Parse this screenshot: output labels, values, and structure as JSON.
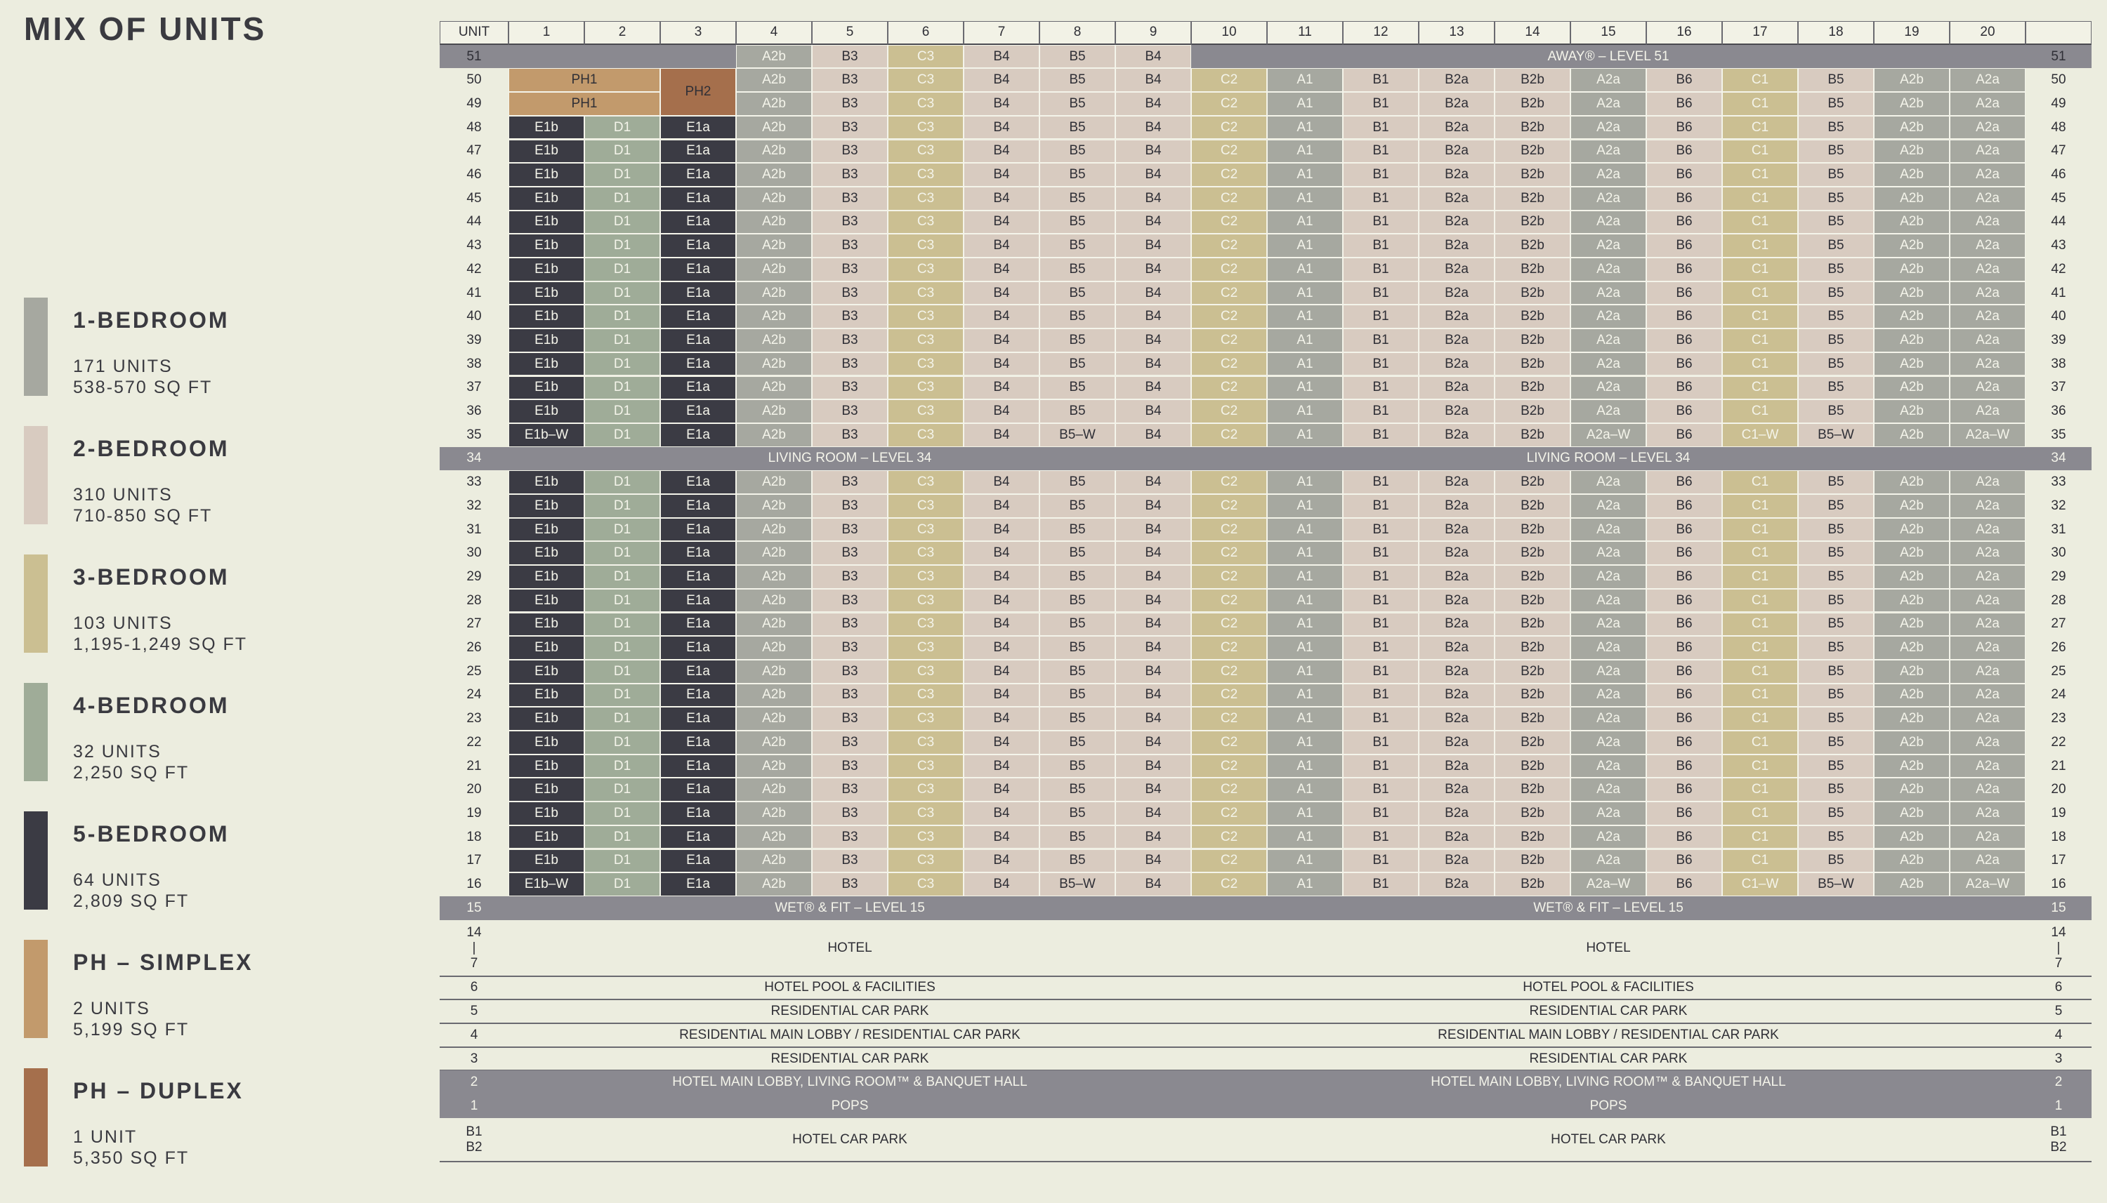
{
  "title": "MIX OF UNITS",
  "legend": [
    {
      "label": "1-BEDROOM",
      "units": "171 UNITS",
      "sqft": "538-570 SQ FT",
      "color": "#a6a8a0"
    },
    {
      "label": "2-BEDROOM",
      "units": "310 UNITS",
      "sqft": "710-850 SQ FT",
      "color": "#d8cbc0"
    },
    {
      "label": "3-BEDROOM",
      "units": "103 UNITS",
      "sqft": "1,195-1,249 SQ FT",
      "color": "#cbbf92"
    },
    {
      "label": "4-BEDROOM",
      "units": "32 UNITS",
      "sqft": "2,250 SQ FT",
      "color": "#9fac98"
    },
    {
      "label": "5-BEDROOM",
      "units": "64 UNITS",
      "sqft": "2,809 SQ FT",
      "color": "#3b3b44"
    },
    {
      "label": "PH – SIMPLEX",
      "units": "2 UNITS",
      "sqft": "5,199 SQ FT",
      "color": "#c29a6c"
    },
    {
      "label": "PH – DUPLEX",
      "units": "1 UNIT",
      "sqft": "5,350 SQ FT",
      "color": "#a56f4c"
    }
  ],
  "colors": {
    "1-bedroom": "#a6a8a0",
    "2-bedroom": "#d8cbc0",
    "3-bedroom": "#cbbf92",
    "4-bedroom": "#9fac98",
    "5-bedroom": "#3b3b44",
    "ph-simplex": "#c29a6c",
    "ph-duplex": "#a56f4c",
    "band": "#8a8990",
    "background": "#eceddf"
  },
  "stack": {
    "header_label": "UNIT",
    "columns": [
      "1",
      "2",
      "3",
      "4",
      "5",
      "6",
      "7",
      "8",
      "9",
      "10",
      "11",
      "12",
      "13",
      "14",
      "15",
      "16",
      "17",
      "18",
      "19",
      "20"
    ],
    "typical_units": [
      "E1b",
      "D1",
      "E1a",
      "A2b",
      "B3",
      "C3",
      "B4",
      "B5",
      "B4",
      "C2",
      "A1",
      "B1",
      "B2a",
      "B2b",
      "A2a",
      "B6",
      "C1",
      "B5",
      "A2b",
      "A2a"
    ],
    "unit_bedrooms": {
      "E1b": "5-bedroom",
      "E1b–W": "5-bedroom",
      "E1a": "5-bedroom",
      "D1": "4-bedroom",
      "C1": "3-bedroom",
      "C1–W": "3-bedroom",
      "C2": "3-bedroom",
      "C3": "3-bedroom",
      "B1": "2-bedroom",
      "B2a": "2-bedroom",
      "B2b": "2-bedroom",
      "B3": "2-bedroom",
      "B4": "2-bedroom",
      "B5": "2-bedroom",
      "B5–W": "2-bedroom",
      "B6": "2-bedroom",
      "A1": "1-bedroom",
      "A2a": "1-bedroom",
      "A2a–W": "1-bedroom",
      "A2b": "1-bedroom",
      "PH1": "ph-simplex",
      "PH2": "ph-duplex"
    },
    "level_51": {
      "level": "51",
      "units": [
        "A2b",
        "B3",
        "C3",
        "B4",
        "B5",
        "B4"
      ],
      "band": "AWAY® – LEVEL 51"
    },
    "penthouses": {
      "simplex": "PH1",
      "duplex": "PH2",
      "levels": [
        "50",
        "49"
      ]
    },
    "wellness_variant": {
      "level_a": "35",
      "level_b": "16",
      "E1b": "E1b–W",
      "A2a": "A2a–W",
      "C1": "C1–W",
      "B5": "B5–W"
    },
    "upper_levels": [
      "50",
      "49",
      "48",
      "47",
      "46",
      "45",
      "44",
      "43",
      "42",
      "41",
      "40",
      "39",
      "38",
      "37",
      "36",
      "35"
    ],
    "band_34": {
      "level": "34",
      "left": "LIVING ROOM – LEVEL 34",
      "right": "LIVING ROOM – LEVEL 34"
    },
    "lower_levels": [
      "33",
      "32",
      "31",
      "30",
      "29",
      "28",
      "27",
      "26",
      "25",
      "24",
      "23",
      "22",
      "21",
      "20",
      "19",
      "18",
      "17",
      "16"
    ],
    "band_15": {
      "level": "15",
      "left": "WET® & FIT – LEVEL 15",
      "right": "WET® & FIT – LEVEL 15"
    },
    "podium": [
      {
        "lines": [
          "14",
          "|",
          "7"
        ],
        "left": "HOTEL",
        "right": "HOTEL",
        "dark": false
      },
      {
        "lines": [
          "6"
        ],
        "left": "HOTEL POOL & FACILITIES",
        "right": "HOTEL POOL & FACILITIES",
        "dark": false
      },
      {
        "lines": [
          "5"
        ],
        "left": "RESIDENTIAL CAR PARK",
        "right": "RESIDENTIAL CAR PARK",
        "dark": false
      },
      {
        "lines": [
          "4"
        ],
        "left": "RESIDENTIAL MAIN LOBBY / RESIDENTIAL CAR PARK",
        "right": "RESIDENTIAL MAIN LOBBY / RESIDENTIAL CAR PARK",
        "dark": false
      },
      {
        "lines": [
          "3"
        ],
        "left": "RESIDENTIAL CAR PARK",
        "right": "RESIDENTIAL CAR PARK",
        "dark": false
      },
      {
        "lines": [
          "2"
        ],
        "left": "HOTEL MAIN LOBBY, LIVING ROOM™ & BANQUET HALL",
        "right": "HOTEL MAIN LOBBY, LIVING ROOM™ & BANQUET HALL",
        "dark": true
      },
      {
        "lines": [
          "1"
        ],
        "left": "POPS",
        "right": "POPS",
        "dark": true
      },
      {
        "lines": [
          "B1",
          "B2"
        ],
        "left": "HOTEL CAR PARK",
        "right": "HOTEL CAR PARK",
        "dark": false
      }
    ]
  }
}
